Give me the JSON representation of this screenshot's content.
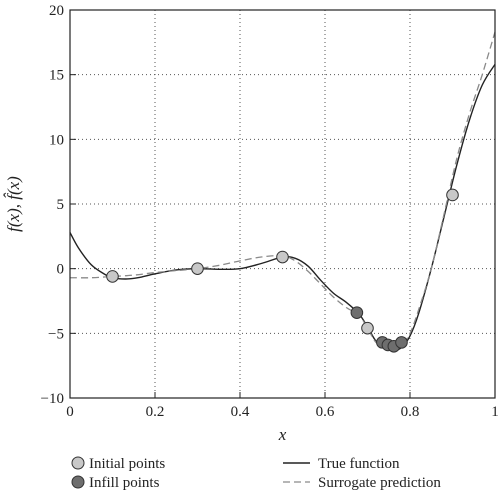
{
  "chart_data": {
    "type": "line",
    "xlabel": "x",
    "ylabel": "f(x), f̂(x)",
    "xlim": [
      0,
      1
    ],
    "ylim": [
      -10,
      20
    ],
    "x_ticks": [
      0,
      0.2,
      0.4,
      0.6,
      0.8,
      1
    ],
    "x_tick_labels": [
      "0",
      "0.2",
      "0.4",
      "0.6",
      "0.8",
      "1"
    ],
    "y_ticks": [
      -10,
      -5,
      0,
      5,
      10,
      15,
      20
    ],
    "y_tick_labels": [
      "−10",
      "−5",
      "0",
      "5",
      "10",
      "15",
      "20"
    ],
    "grid": "dotted",
    "legend": {
      "initial": "Initial points",
      "infill": "Infill points",
      "true": "True function",
      "surrogate": "Surrogate prediction"
    },
    "series": [
      {
        "name": "True function",
        "style": "solid",
        "color": "#222222",
        "x": [
          0,
          0.02,
          0.05,
          0.08,
          0.1,
          0.13,
          0.16,
          0.2,
          0.25,
          0.3,
          0.35,
          0.4,
          0.45,
          0.5,
          0.53,
          0.56,
          0.59,
          0.62,
          0.65,
          0.68,
          0.7,
          0.72,
          0.74,
          0.76,
          0.78,
          0.8,
          0.82,
          0.85,
          0.88,
          0.91,
          0.94,
          0.97,
          1.0
        ],
        "y": [
          2.8,
          1.6,
          0.3,
          -0.4,
          -0.7,
          -0.8,
          -0.7,
          -0.4,
          -0.1,
          0.0,
          -0.05,
          0.0,
          0.4,
          0.9,
          0.8,
          0.2,
          -0.9,
          -1.9,
          -2.6,
          -3.5,
          -4.5,
          -5.6,
          -6.0,
          -6.3,
          -6.1,
          -5.2,
          -3.5,
          0.0,
          4.0,
          8.0,
          11.5,
          14.2,
          15.8
        ]
      },
      {
        "name": "Surrogate prediction",
        "style": "dashed",
        "color": "#8a8a8a",
        "x": [
          0,
          0.05,
          0.1,
          0.15,
          0.2,
          0.25,
          0.3,
          0.35,
          0.4,
          0.45,
          0.5,
          0.53,
          0.56,
          0.59,
          0.62,
          0.65,
          0.68,
          0.7,
          0.72,
          0.74,
          0.76,
          0.78,
          0.8,
          0.82,
          0.85,
          0.88,
          0.91,
          0.94,
          0.97,
          1.0
        ],
        "y": [
          -0.7,
          -0.7,
          -0.6,
          -0.5,
          -0.3,
          -0.15,
          0.0,
          0.25,
          0.6,
          0.9,
          1.0,
          0.6,
          -0.2,
          -1.2,
          -2.2,
          -3.0,
          -3.6,
          -4.6,
          -5.7,
          -6.0,
          -6.1,
          -5.9,
          -5.0,
          -3.2,
          0.0,
          4.2,
          8.5,
          12.0,
          15.0,
          18.3
        ]
      }
    ],
    "points": [
      {
        "name": "Initial points",
        "x": [
          0.1,
          0.3,
          0.5,
          0.7,
          0.9
        ],
        "y": [
          -0.6,
          0.0,
          0.9,
          -4.6,
          5.7
        ]
      },
      {
        "name": "Infill points",
        "x": [
          0.675,
          0.735,
          0.748,
          0.762,
          0.78
        ],
        "y": [
          -3.4,
          -5.7,
          -5.9,
          -6.0,
          -5.7
        ]
      }
    ],
    "colors": {
      "initial_fill": "#c8c8c8",
      "infill_fill": "#6e6e6e",
      "marker_stroke": "#333333",
      "grid": "#555555"
    }
  }
}
